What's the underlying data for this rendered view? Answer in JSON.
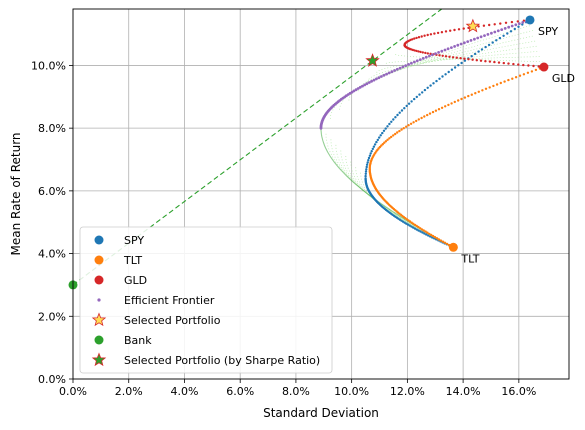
{
  "chart_data": {
    "type": "scatter",
    "title": "",
    "xlabel": "Standard Deviation",
    "ylabel": "Mean Rate of Return",
    "xlim": [
      0,
      0.178
    ],
    "ylim": [
      0,
      0.118
    ],
    "x_ticks": [
      0,
      0.02,
      0.04,
      0.06,
      0.08,
      0.1,
      0.12,
      0.14,
      0.16
    ],
    "x_tick_labels": [
      "0.0%",
      "2.0%",
      "4.0%",
      "6.0%",
      "8.0%",
      "10.0%",
      "12.0%",
      "14.0%",
      "16.0%"
    ],
    "y_ticks": [
      0,
      0.02,
      0.04,
      0.06,
      0.08,
      0.1
    ],
    "y_tick_labels": [
      "0.0%",
      "2.0%",
      "4.0%",
      "6.0%",
      "8.0%",
      "10.0%"
    ],
    "grid": true,
    "legend_position": "lower-left",
    "colors": {
      "spy": "#1f77b4",
      "tlt": "#ff7f0e",
      "gld": "#d62728",
      "frontier": "#9467bd",
      "bank": "#2ca02c",
      "cloud": "#98df8a",
      "selected_fill": "#ffdd55",
      "selected_edge": "#d62728"
    },
    "assets": [
      {
        "key": "spy",
        "name": "SPY",
        "x": 0.164,
        "y": 0.1145
      },
      {
        "key": "tlt",
        "name": "TLT",
        "x": 0.1365,
        "y": 0.042
      },
      {
        "key": "gld",
        "name": "GLD",
        "x": 0.169,
        "y": 0.0995
      }
    ],
    "frontier_vertex": {
      "x": 0.089,
      "y": 0.08
    },
    "frontier_upper_top": {
      "x": 0.164,
      "y": 0.1145
    },
    "tlt_spy_min": {
      "x": 0.105,
      "y": 0.064
    },
    "tlt_gld_min": {
      "x": 0.1065,
      "y": 0.067
    },
    "spy_gld_min": {
      "x": 0.119,
      "y": 0.1065
    },
    "bank": {
      "name": "Bank",
      "x": 0.0,
      "y": 0.03
    },
    "selected_portfolio": {
      "name": "Selected Portfolio",
      "x": 0.1435,
      "y": 0.1125
    },
    "sharpe_portfolio": {
      "name": "Selected Portfolio (by Sharpe Ratio)",
      "x": 0.1075,
      "y": 0.1015
    },
    "legend": [
      "SPY",
      "TLT",
      "GLD",
      "Efficient Frontier",
      "Selected Portfolio",
      "Bank",
      "Selected Portfolio (by Sharpe Ratio)"
    ]
  }
}
